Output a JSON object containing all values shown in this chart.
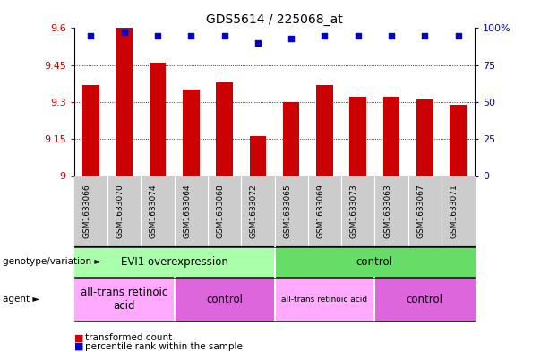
{
  "title": "GDS5614 / 225068_at",
  "samples": [
    "GSM1633066",
    "GSM1633070",
    "GSM1633074",
    "GSM1633064",
    "GSM1633068",
    "GSM1633072",
    "GSM1633065",
    "GSM1633069",
    "GSM1633073",
    "GSM1633063",
    "GSM1633067",
    "GSM1633071"
  ],
  "bar_values": [
    9.37,
    9.6,
    9.46,
    9.35,
    9.38,
    9.16,
    9.3,
    9.37,
    9.32,
    9.32,
    9.31,
    9.29
  ],
  "percentile_values": [
    95,
    97,
    95,
    95,
    95,
    90,
    93,
    95,
    95,
    95,
    95,
    95
  ],
  "bar_color": "#cc0000",
  "dot_color": "#0000cc",
  "ymin": 9.0,
  "ymax": 9.6,
  "yticks": [
    9.0,
    9.15,
    9.3,
    9.45,
    9.6
  ],
  "ytick_labels": [
    "9",
    "9.15",
    "9.3",
    "9.45",
    "9.6"
  ],
  "right_yticks": [
    0,
    25,
    50,
    75,
    100
  ],
  "right_ytick_labels": [
    "0",
    "25",
    "50",
    "75",
    "100%"
  ],
  "genotype_groups": [
    {
      "label": "EVI1 overexpression",
      "start": 0,
      "end": 6,
      "color": "#aaffaa"
    },
    {
      "label": "control",
      "start": 6,
      "end": 12,
      "color": "#66dd66"
    }
  ],
  "agent_groups": [
    {
      "label": "all-trans retinoic\nacid",
      "start": 0,
      "end": 3,
      "color": "#ffaaff"
    },
    {
      "label": "control",
      "start": 3,
      "end": 6,
      "color": "#dd66dd"
    },
    {
      "label": "all-trans retinoic acid",
      "start": 6,
      "end": 9,
      "color": "#ffaaff"
    },
    {
      "label": "control",
      "start": 9,
      "end": 12,
      "color": "#dd66dd"
    }
  ],
  "genotype_label": "genotype/variation",
  "agent_label": "agent",
  "bar_color_legend": "#cc0000",
  "dot_color_legend": "#0000cc",
  "legend_label_bar": "transformed count",
  "legend_label_dot": "percentile rank within the sample",
  "tick_bg_color": "#cccccc"
}
